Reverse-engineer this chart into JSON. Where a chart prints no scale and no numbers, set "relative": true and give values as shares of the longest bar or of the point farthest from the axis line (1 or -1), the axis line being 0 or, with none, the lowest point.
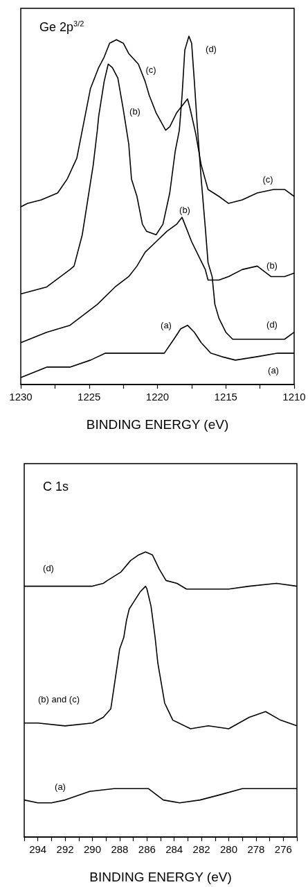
{
  "chart_data": [
    {
      "type": "line",
      "xlabel": "BINDING ENERGY (eV)",
      "relative": true,
      "tick_labels": "x",
      "grid": false,
      "xlim": [
        1230,
        1210
      ],
      "xticks": [
        1230,
        {
          "value": 1227.5,
          "label": null
        },
        1225,
        {
          "value": 1222.5,
          "label": null
        },
        1220,
        {
          "value": 1217.5,
          "label": null
        },
        1215,
        {
          "value": 1212.5,
          "label": null
        },
        1210
      ],
      "series": [
        {
          "color": "#000000",
          "x": [
            1230,
            1229.5,
            1228.5,
            1227.3,
            1226.6,
            1225.9,
            1225.4,
            1224.9,
            1224.3,
            1223.9,
            1223.5,
            1223.0,
            1222.5,
            1222.1,
            1221.4,
            1220.9,
            1220.6,
            1220.1,
            1219.4,
            1219.1,
            1218.6,
            1218.2,
            1217.8,
            1217.6,
            1217.2,
            1216.8,
            1216.3,
            1215.5,
            1214.8,
            1213.8,
            1212.7,
            1211.5,
            1210.7,
            1210
          ],
          "values": [
            0.51,
            0.52,
            0.53,
            0.55,
            0.59,
            0.65,
            0.75,
            0.85,
            0.91,
            0.94,
            0.98,
            0.99,
            0.98,
            0.95,
            0.92,
            0.87,
            0.83,
            0.78,
            0.73,
            0.74,
            0.78,
            0.8,
            0.82,
            0.79,
            0.72,
            0.63,
            0.56,
            0.54,
            0.52,
            0.53,
            0.55,
            0.56,
            0.56,
            0.54
          ]
        },
        {
          "color": "#000000",
          "x": [
            1230,
            1228.1,
            1226.4,
            1226.1,
            1225.5,
            1225.1,
            1224.7,
            1224.4,
            1224.3,
            1223.9,
            1223.6,
            1223.3,
            1222.9,
            1222.5,
            1222.1,
            1221.9,
            1221.5,
            1221.1,
            1220.8,
            1220.1,
            1219.6,
            1219.1,
            1218.7,
            1218.4,
            1218.2,
            1218.0,
            1217.7,
            1217.5,
            1217.3,
            1217.1,
            1216.8,
            1216.5,
            1216.3,
            1216.0,
            1215.8,
            1215.5,
            1215.0,
            1214.5,
            1213.2,
            1211.7,
            1210.7,
            1210
          ],
          "values": [
            0.26,
            0.28,
            0.33,
            0.34,
            0.43,
            0.53,
            0.63,
            0.73,
            0.77,
            0.87,
            0.92,
            0.91,
            0.88,
            0.79,
            0.69,
            0.59,
            0.54,
            0.46,
            0.44,
            0.43,
            0.46,
            0.55,
            0.67,
            0.73,
            0.83,
            0.96,
            1.0,
            0.98,
            0.87,
            0.75,
            0.59,
            0.45,
            0.35,
            0.31,
            0.23,
            0.19,
            0.15,
            0.13,
            0.13,
            0.13,
            0.13,
            0.15
          ]
        },
        {
          "color": "#000000",
          "x": [
            1230,
            1228.1,
            1226.4,
            1224.4,
            1223.1,
            1222.1,
            1221.5,
            1220.9,
            1220.1,
            1219.3,
            1218.6,
            1218.2,
            1217.9,
            1217.5,
            1217.0,
            1216.5,
            1216.3,
            1215.5,
            1214.8,
            1213.8,
            1212.7,
            1211.7,
            1210.7,
            1210
          ],
          "values": [
            0.12,
            0.15,
            0.17,
            0.23,
            0.28,
            0.31,
            0.34,
            0.38,
            0.41,
            0.44,
            0.46,
            0.48,
            0.45,
            0.41,
            0.37,
            0.33,
            0.3,
            0.3,
            0.31,
            0.33,
            0.34,
            0.31,
            0.31,
            0.32
          ]
        },
        {
          "color": "#000000",
          "x": [
            1230,
            1228.1,
            1226.4,
            1224.9,
            1223.8,
            1222.4,
            1221.4,
            1219.5,
            1218.8,
            1218.3,
            1217.8,
            1217.3,
            1216.8,
            1216.1,
            1215.3,
            1214.3,
            1212.7,
            1211.2,
            1210
          ],
          "values": [
            0.02,
            0.05,
            0.05,
            0.07,
            0.09,
            0.09,
            0.09,
            0.09,
            0.13,
            0.16,
            0.17,
            0.15,
            0.12,
            0.09,
            0.08,
            0.07,
            0.08,
            0.09,
            0.09
          ]
        }
      ],
      "annotations": [
        "Ge 2p$^{3/2}$",
        "(c)",
        "(d)",
        "(b)",
        "(c)",
        "(b)",
        "(b)",
        "(d)",
        "(a)",
        "(a)"
      ]
    },
    {
      "type": "line",
      "xlabel": "BINDING ENERGY (eV)",
      "relative": true,
      "tick_labels": "x",
      "grid": false,
      "xlim": [
        295,
        275
      ],
      "xticks": [
        {
          "value": 295,
          "label": null
        },
        294,
        {
          "value": 293,
          "label": null
        },
        292,
        {
          "value": 291,
          "label": null
        },
        290,
        {
          "value": 289,
          "label": null
        },
        288,
        {
          "value": 287,
          "label": null
        },
        286,
        {
          "value": 285,
          "label": null
        },
        284,
        {
          "value": 283,
          "label": null
        },
        282,
        {
          "value": 281,
          "label": null
        },
        280,
        {
          "value": 279,
          "label": null
        },
        278,
        {
          "value": 277,
          "label": null
        },
        276,
        {
          "value": 275,
          "label": null
        }
      ],
      "series": [
        {
          "color": "#000000",
          "x": [
            295,
            294,
            292,
            290,
            289.2,
            288.9,
            287.9,
            287.2,
            286.6,
            286.1,
            285.6,
            285.1,
            284.6,
            283.8,
            283.1,
            281.5,
            280.0,
            278.5,
            276.5,
            275
          ],
          "values": [
            0.88,
            0.88,
            0.88,
            0.88,
            0.89,
            0.9,
            0.93,
            0.97,
            0.99,
            1.0,
            0.99,
            0.94,
            0.9,
            0.89,
            0.87,
            0.87,
            0.87,
            0.88,
            0.89,
            0.88
          ]
        },
        {
          "color": "#000000",
          "x": [
            295,
            294,
            292,
            290,
            289.2,
            288.65,
            288.4,
            288.0,
            287.7,
            287.5,
            287.3,
            286.9,
            286.5,
            286.1,
            286.0,
            285.7,
            285.4,
            285.2,
            284.7,
            284.1,
            282.8,
            281.5,
            280.0,
            278.5,
            277.3,
            276.2,
            275
          ],
          "values": [
            0.4,
            0.4,
            0.39,
            0.4,
            0.42,
            0.45,
            0.53,
            0.66,
            0.7,
            0.76,
            0.8,
            0.83,
            0.86,
            0.88,
            0.87,
            0.81,
            0.7,
            0.61,
            0.47,
            0.41,
            0.38,
            0.39,
            0.38,
            0.42,
            0.44,
            0.41,
            0.39
          ]
        },
        {
          "color": "#000000",
          "x": [
            295,
            294,
            293,
            292,
            290.2,
            288.4,
            286.6,
            285.9,
            284.8,
            283.6,
            282.1,
            280.5,
            279.0,
            277.5,
            276.0,
            275
          ],
          "values": [
            0.13,
            0.12,
            0.12,
            0.13,
            0.16,
            0.17,
            0.17,
            0.17,
            0.13,
            0.12,
            0.13,
            0.15,
            0.17,
            0.17,
            0.17,
            0.17
          ]
        }
      ],
      "annotations": [
        "C 1s",
        "(d)",
        "(b) and (c)",
        "(a)"
      ]
    }
  ]
}
